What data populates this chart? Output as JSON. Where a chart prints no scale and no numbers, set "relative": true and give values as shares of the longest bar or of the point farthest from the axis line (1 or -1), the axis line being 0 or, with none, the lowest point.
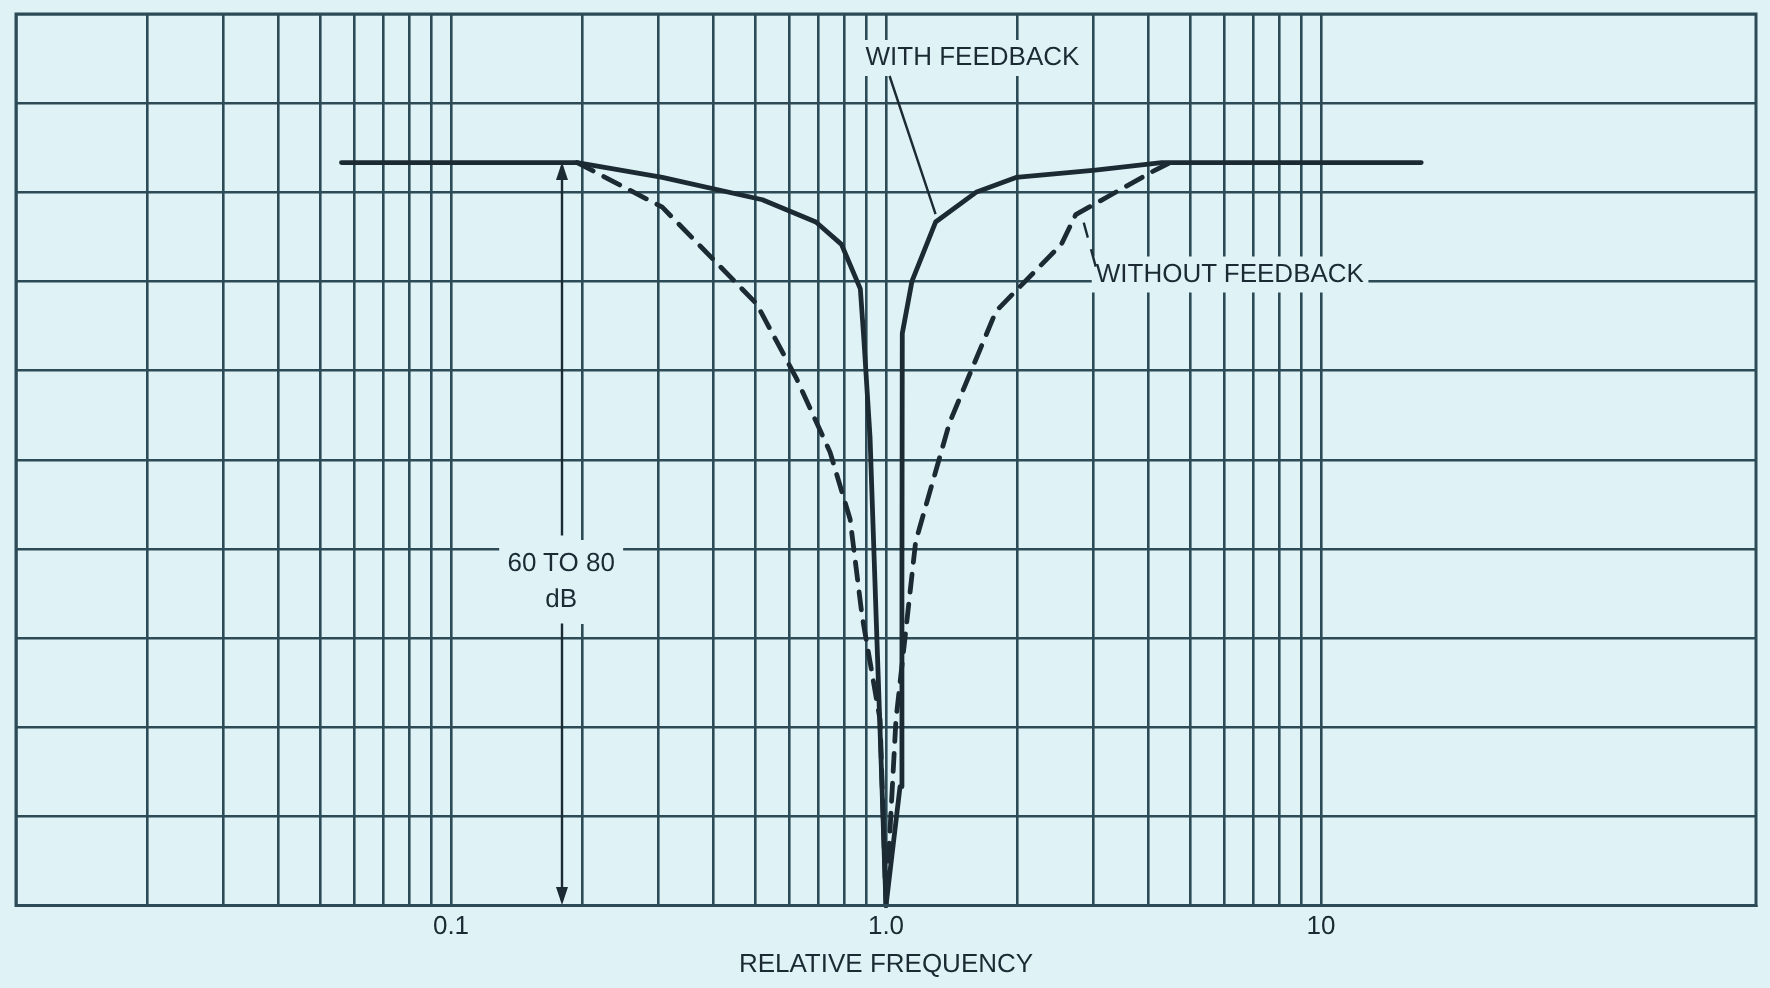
{
  "chart_data": {
    "type": "line",
    "xlabel": "RELATIVE FREQUENCY",
    "relative": true,
    "log": "x",
    "grid": true,
    "tick_labels": "x",
    "marker": "none",
    "xlim": [
      0.01,
      100
    ],
    "xticks": [
      {
        "value": 0.01,
        "label": null
      },
      {
        "value": 0.02,
        "label": null
      },
      {
        "value": 0.03,
        "label": null
      },
      {
        "value": 0.04,
        "label": null
      },
      {
        "value": 0.05,
        "label": null
      },
      {
        "value": 0.06,
        "label": null
      },
      {
        "value": 0.07,
        "label": null
      },
      {
        "value": 0.08,
        "label": null
      },
      {
        "value": 0.09,
        "label": null
      },
      {
        "value": 0.1,
        "label": "0.1"
      },
      {
        "value": 0.2,
        "label": null
      },
      {
        "value": 0.3,
        "label": null
      },
      {
        "value": 0.4,
        "label": null
      },
      {
        "value": 0.5,
        "label": null
      },
      {
        "value": 0.6,
        "label": null
      },
      {
        "value": 0.7,
        "label": null
      },
      {
        "value": 0.8,
        "label": null
      },
      {
        "value": 0.9,
        "label": null
      },
      {
        "value": 1,
        "label": "1.0"
      },
      {
        "value": 2,
        "label": null
      },
      {
        "value": 3,
        "label": null
      },
      {
        "value": 4,
        "label": null
      },
      {
        "value": 5,
        "label": null
      },
      {
        "value": 6,
        "label": null
      },
      {
        "value": 7,
        "label": null
      },
      {
        "value": 8,
        "label": null
      },
      {
        "value": 9,
        "label": null
      },
      {
        "value": 10,
        "label": "10"
      }
    ],
    "series": [
      {
        "name": "WITH FEEDBACK",
        "color": "#1c2b33",
        "line_style": "solid",
        "x": [
          0.056,
          0.195,
          0.306,
          0.52,
          0.69,
          0.79,
          0.873,
          0.89,
          0.919,
          0.949,
          0.979,
          1,
          1.077,
          1.088,
          1.09,
          1.147,
          1.3,
          1.61,
          1.99,
          3.03,
          4.3,
          17
        ],
        "values": [
          1,
          1,
          0.98,
          0.95,
          0.92,
          0.89,
          0.83,
          0.76,
          0.63,
          0.39,
          0.16,
          0,
          0.16,
          0.44,
          0.77,
          0.84,
          0.92,
          0.96,
          0.98,
          0.99,
          1,
          1
        ]
      },
      {
        "name": "WITHOUT FEEDBACK",
        "color": "#1c2b33",
        "line_style": "dashed",
        "x": [
          0.195,
          0.306,
          0.504,
          0.622,
          0.744,
          0.827,
          0.881,
          0.969,
          1,
          1.054,
          1.17,
          1.4,
          1.79,
          2.53,
          2.73,
          4.16,
          4.5
        ],
        "values": [
          1,
          0.94,
          0.81,
          0.71,
          0.61,
          0.52,
          0.39,
          0.25,
          0,
          0.25,
          0.49,
          0.65,
          0.8,
          0.89,
          0.93,
          0.99,
          1
        ]
      }
    ],
    "annotations": [
      "60 TO 80 dB"
    ]
  }
}
